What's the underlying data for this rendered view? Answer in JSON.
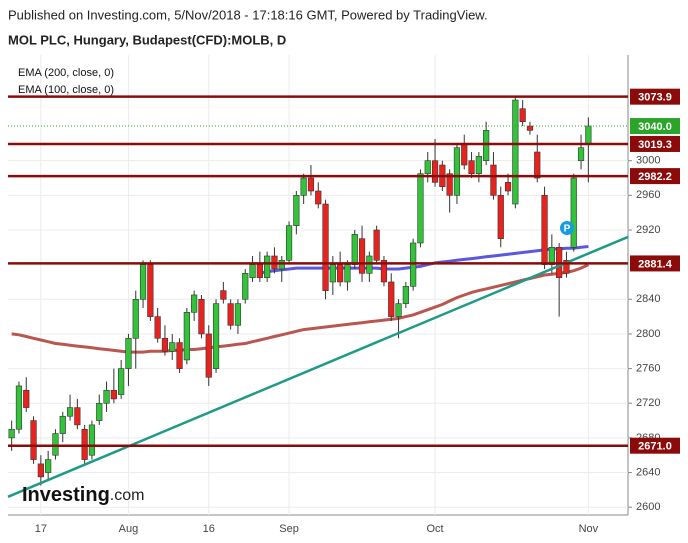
{
  "chart_data": {
    "type": "candlestick",
    "subtitle": "Published on Investing.com, 5/Nov/2018 - 17:18:16 GMT, Powered by TradingView.",
    "title": "MOL PLC, Hungary, Budapest(CFD):MOLB, D",
    "categories": [
      null,
      null,
      null,
      null,
      "17",
      null,
      null,
      null,
      null,
      null,
      null,
      null,
      null,
      null,
      null,
      null,
      "Aug",
      null,
      null,
      null,
      null,
      null,
      null,
      null,
      null,
      null,
      null,
      "16",
      null,
      null,
      null,
      null,
      null,
      null,
      null,
      null,
      null,
      null,
      "Sep",
      null,
      null,
      null,
      null,
      null,
      null,
      null,
      null,
      null,
      null,
      null,
      null,
      null,
      null,
      null,
      null,
      null,
      null,
      null,
      "Oct",
      null,
      null,
      null,
      null,
      null,
      null,
      null,
      null,
      null,
      null,
      null,
      null,
      null,
      null,
      null,
      null,
      null,
      null,
      null,
      null,
      "Nov"
    ],
    "open": [
      2680,
      2690,
      2735,
      2700,
      2650,
      2640,
      2660,
      2685,
      2705,
      2715,
      2690,
      2660,
      2700,
      2720,
      2735,
      2730,
      2760,
      2795,
      2840,
      2880,
      2820,
      2795,
      2780,
      2790,
      2770,
      2825,
      2840,
      2800,
      2760,
      2850,
      2835,
      2810,
      2840,
      2865,
      2880,
      2865,
      2890,
      2875,
      2885,
      2925,
      2960,
      2980,
      2965,
      2950,
      2860,
      2880,
      2860,
      2880,
      2910,
      2870,
      2920,
      2885,
      2860,
      2820,
      2835,
      2855,
      2905,
      2985,
      3000,
      2995,
      2985,
      2960,
      3020,
      3000,
      2985,
      3000,
      2995,
      2960,
      2975,
      2950,
      3060,
      3040,
      3010,
      2960,
      2880,
      2900,
      2885,
      2900,
      3000,
      3020
    ],
    "high": [
      2700,
      2745,
      2750,
      2705,
      2660,
      2665,
      2690,
      2710,
      2730,
      2725,
      2695,
      2700,
      2730,
      2745,
      2760,
      2770,
      2800,
      2850,
      2885,
      2885,
      2830,
      2810,
      2800,
      2795,
      2830,
      2850,
      2845,
      2810,
      2840,
      2860,
      2840,
      2840,
      2875,
      2890,
      2895,
      2895,
      2900,
      2890,
      2930,
      2965,
      2985,
      2995,
      2975,
      2955,
      2890,
      2895,
      2885,
      2920,
      2925,
      2895,
      2925,
      2890,
      2870,
      2840,
      2860,
      2910,
      2990,
      3010,
      3025,
      3000,
      2990,
      3020,
      3030,
      3010,
      3010,
      3045,
      3010,
      2970,
      2985,
      3075,
      3070,
      3045,
      3030,
      2970,
      2915,
      2905,
      2895,
      2985,
      3030,
      3050
    ],
    "low": [
      2665,
      2685,
      2710,
      2650,
      2625,
      2630,
      2655,
      2675,
      2700,
      2690,
      2650,
      2655,
      2695,
      2710,
      2720,
      2725,
      2740,
      2760,
      2830,
      2815,
      2790,
      2775,
      2770,
      2755,
      2765,
      2815,
      2795,
      2740,
      2755,
      2835,
      2805,
      2800,
      2835,
      2860,
      2860,
      2860,
      2870,
      2860,
      2880,
      2915,
      2950,
      2960,
      2945,
      2840,
      2845,
      2855,
      2850,
      2875,
      2860,
      2860,
      2880,
      2855,
      2815,
      2795,
      2830,
      2850,
      2900,
      2975,
      2970,
      2965,
      2940,
      2950,
      2990,
      2980,
      2975,
      2995,
      2955,
      2900,
      2960,
      2945,
      3040,
      3030,
      2975,
      2875,
      2870,
      2820,
      2865,
      2895,
      2990,
      2975
    ],
    "close": [
      2690,
      2740,
      2715,
      2655,
      2635,
      2655,
      2685,
      2705,
      2715,
      2695,
      2655,
      2695,
      2720,
      2735,
      2725,
      2760,
      2795,
      2840,
      2880,
      2820,
      2795,
      2780,
      2790,
      2760,
      2825,
      2845,
      2800,
      2750,
      2835,
      2840,
      2810,
      2835,
      2870,
      2880,
      2865,
      2890,
      2875,
      2885,
      2925,
      2960,
      2980,
      2965,
      2950,
      2850,
      2880,
      2860,
      2880,
      2915,
      2870,
      2890,
      2885,
      2860,
      2820,
      2835,
      2855,
      2905,
      2985,
      3000,
      2975,
      2970,
      2960,
      3015,
      2995,
      2985,
      3005,
      3035,
      2960,
      2910,
      2965,
      3070,
      3045,
      3035,
      2980,
      2880,
      2900,
      2865,
      2870,
      2980,
      3015,
      3040
    ],
    "up_color": "#33c33a",
    "down_color": "#e8231d",
    "series": [
      {
        "name": "EMA (200, close, 0)",
        "color": "#b8574f",
        "values": [
          2800,
          2799,
          2797,
          2795,
          2793,
          2791,
          2789,
          2788,
          2787,
          2786,
          2785,
          2784,
          2783,
          2782,
          2781,
          2780,
          2779,
          2779,
          2779,
          2780,
          2780,
          2780,
          2781,
          2781,
          2782,
          2782,
          2783,
          2784,
          2785,
          2786,
          2787,
          2788,
          2789,
          2791,
          2793,
          2795,
          2797,
          2799,
          2801,
          2803,
          2805,
          2806,
          2807,
          2808,
          2809,
          2810,
          2811,
          2812,
          2813,
          2814,
          2815,
          2816,
          2817,
          2818,
          2820,
          2822,
          2825,
          2828,
          2831,
          2834,
          2838,
          2842,
          2845,
          2848,
          2850,
          2852,
          2854,
          2856,
          2858,
          2860,
          2862,
          2864,
          2866,
          2868,
          2869,
          2870,
          2871,
          2873,
          2876,
          2880
        ]
      },
      {
        "name": "EMA (100, close, 0)",
        "color": "#5a58dc",
        "values": [
          null,
          null,
          null,
          null,
          null,
          null,
          null,
          null,
          null,
          null,
          null,
          null,
          null,
          null,
          null,
          null,
          null,
          null,
          null,
          null,
          null,
          null,
          null,
          null,
          null,
          null,
          null,
          null,
          null,
          null,
          null,
          null,
          null,
          null,
          2870,
          2872,
          2873,
          2874,
          2875,
          2876,
          2876,
          2876,
          2876,
          2876,
          2876,
          2876,
          2876,
          2876,
          2876,
          2876,
          2876,
          2875,
          2875,
          2875,
          2876,
          2877,
          2878,
          2880,
          2882,
          2883,
          2884,
          2885,
          2886,
          2887,
          2888,
          2889,
          2890,
          2891,
          2892,
          2893,
          2894,
          2895,
          2896,
          2897,
          2898,
          2898,
          2899,
          2899,
          2900,
          2901
        ]
      }
    ],
    "trendline": {
      "color": "#1f9a86",
      "start": 2612,
      "end": 2912
    },
    "levels": [
      3073.9,
      3019.3,
      2982.2,
      2881.4,
      {
        "value": 2671,
        "label": "2671.0"
      }
    ],
    "level_color": "#8b0b0b",
    "last_price": {
      "value": 3040,
      "label": "3040.0"
    },
    "last_price_color": "#2aa52a",
    "marker_text": "P",
    "logo": {
      "name": "Investing",
      "suffix": ".com"
    },
    "ylim": [
      2591,
      3122
    ],
    "yticks": [
      2600,
      2640,
      2680,
      2720,
      2760,
      2800,
      2840,
      2920,
      2960,
      3000
    ],
    "grid": true
  }
}
